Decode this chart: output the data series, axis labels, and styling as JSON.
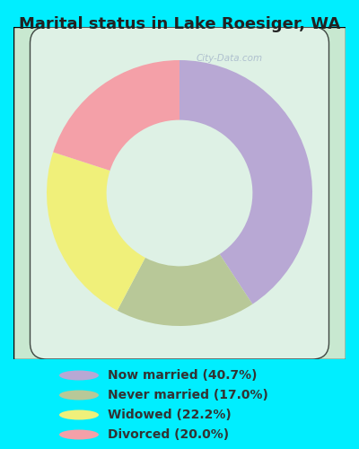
{
  "title": "Marital status in Lake Roesiger, WA",
  "categories": [
    "Now married (40.7%)",
    "Never married (17.0%)",
    "Widowed (22.2%)",
    "Divorced (20.0%)"
  ],
  "values": [
    40.7,
    17.0,
    22.2,
    20.0
  ],
  "colors": [
    "#b8a8d4",
    "#b8c898",
    "#f0f07a",
    "#f4a0a8"
  ],
  "bg_color": "#00eeff",
  "chart_bg_outer": "#c8e8d0",
  "chart_bg_inner": "#e8f5ee",
  "watermark": "City-Data.com",
  "title_fontsize": 13,
  "legend_fontsize": 10,
  "donut_width": 0.45
}
